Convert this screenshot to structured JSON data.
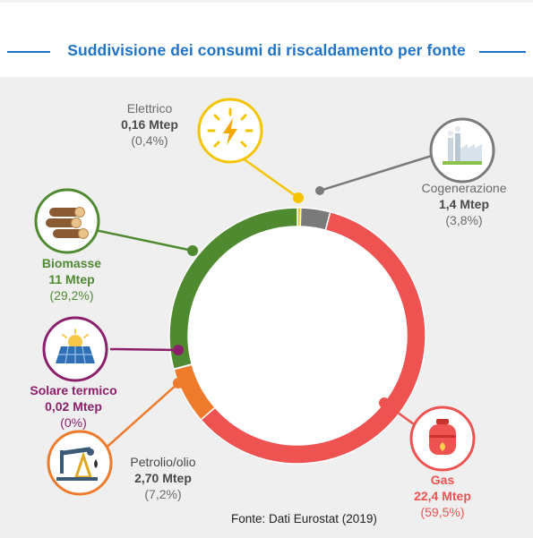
{
  "header": {
    "title": "Suddivisione dei consumi di riscaldamento per fonte"
  },
  "source": "Fonte: Dati Eurostat (2019)",
  "colors": {
    "elettrico": "#f5c400",
    "cogenerazione": "#7a7a7a",
    "gas": "#ee5352",
    "petrolio": "#ee7a2c",
    "solare": "#8b1f6b",
    "biomasse": "#4f8a30",
    "accent": "#1f73c9",
    "panel": "#efefef"
  },
  "labels": {
    "elettrico": {
      "name": "Elettrico",
      "value": "0,16 Mtep",
      "pct": "(0,4%)",
      "icon": "lightning-sun-icon"
    },
    "cogenerazione": {
      "name": "Cogenerazione",
      "value": "1,4 Mtep",
      "pct": "(3,8%)",
      "icon": "factory-icon"
    },
    "biomasse": {
      "name": "Biomasse",
      "value": "11 Mtep",
      "pct": "(29,2%)",
      "icon": "logs-icon"
    },
    "solare": {
      "name": "Solare termico",
      "value": "0,02 Mtep",
      "pct": "(0%)",
      "icon": "solar-panel-icon"
    },
    "petrolio": {
      "name": "Petrolio/olio",
      "value": "2,70 Mtep",
      "pct": "(7,2%)",
      "icon": "oil-pump-icon"
    },
    "gas": {
      "name": "Gas",
      "value": "22,4 Mtep",
      "pct": "(59,5%)",
      "icon": "gas-cylinder-icon"
    }
  },
  "chart_data": {
    "type": "pie",
    "title": "Suddivisione dei consumi di riscaldamento per fonte",
    "unit": "Mtep",
    "categories": [
      "Elettrico",
      "Cogenerazione",
      "Gas",
      "Petrolio/olio",
      "Solare termico",
      "Biomasse"
    ],
    "values": [
      0.16,
      1.4,
      22.4,
      2.7,
      0.02,
      11
    ],
    "percent": [
      0.4,
      3.8,
      59.5,
      7.2,
      0,
      29.2
    ],
    "donut": true
  }
}
